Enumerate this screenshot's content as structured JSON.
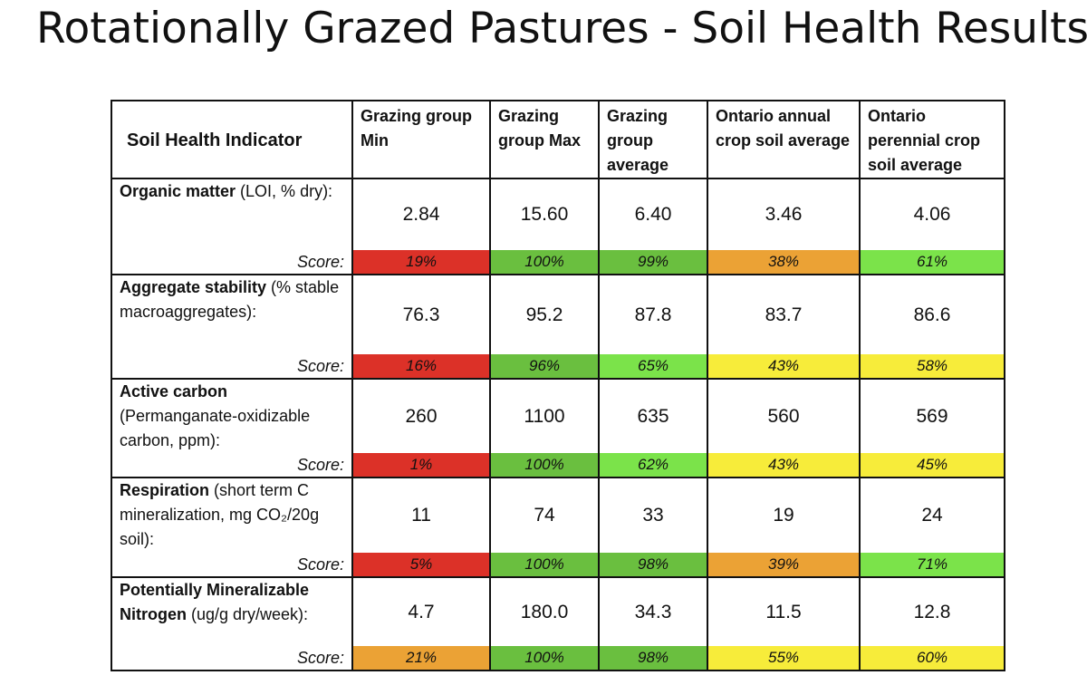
{
  "title": "Rotationally Grazed Pastures - Soil Health Results",
  "table": {
    "headers": [
      "Soil Health Indicator",
      "Grazing group Min",
      "Grazing group Max",
      "Grazing group average",
      "Ontario annual crop soil average",
      "Ontario perennial crop soil average"
    ],
    "score_label": "Score:",
    "rows": [
      {
        "indicator_bold": "Organic matter",
        "indicator_rest": " (LOI, % dry):",
        "values": [
          "2.84",
          "15.60",
          "6.40",
          "3.46",
          "4.06"
        ],
        "scores": [
          {
            "text": "19%",
            "color": "#dc3128"
          },
          {
            "text": "100%",
            "color": "#6abf3f"
          },
          {
            "text": "99%",
            "color": "#6abf3f"
          },
          {
            "text": "38%",
            "color": "#eba235"
          },
          {
            "text": "61%",
            "color": "#7be34a"
          }
        ]
      },
      {
        "indicator_bold": "Aggregate stability",
        "indicator_rest": " (% stable macroaggregates):",
        "values": [
          "76.3",
          "95.2",
          "87.8",
          "83.7",
          "86.6"
        ],
        "scores": [
          {
            "text": "16%",
            "color": "#dc3128"
          },
          {
            "text": "96%",
            "color": "#6abf3f"
          },
          {
            "text": "65%",
            "color": "#7be34a"
          },
          {
            "text": "43%",
            "color": "#f7ec3a"
          },
          {
            "text": "58%",
            "color": "#f7ec3a"
          }
        ]
      },
      {
        "indicator_bold": "Active carbon",
        "indicator_rest": " (Permanganate-oxidizable carbon, ppm):",
        "values": [
          "260",
          "1100",
          "635",
          "560",
          "569"
        ],
        "scores": [
          {
            "text": "1%",
            "color": "#dc3128"
          },
          {
            "text": "100%",
            "color": "#6abf3f"
          },
          {
            "text": "62%",
            "color": "#7be34a"
          },
          {
            "text": "43%",
            "color": "#f7ec3a"
          },
          {
            "text": "45%",
            "color": "#f7ec3a"
          }
        ]
      },
      {
        "indicator_bold": "Respiration",
        "indicator_rest": " (short term C mineralization, mg CO₂/20g soil):",
        "values": [
          "11",
          "74",
          "33",
          "19",
          "24"
        ],
        "scores": [
          {
            "text": "5%",
            "color": "#dc3128"
          },
          {
            "text": "100%",
            "color": "#6abf3f"
          },
          {
            "text": "98%",
            "color": "#6abf3f"
          },
          {
            "text": "39%",
            "color": "#eba235"
          },
          {
            "text": "71%",
            "color": "#7be34a"
          }
        ]
      },
      {
        "indicator_bold": "Potentially Mineralizable Nitrogen",
        "indicator_rest": " (ug/g dry/week):",
        "values": [
          "4.7",
          "180.0",
          "34.3",
          "11.5",
          "12.8"
        ],
        "scores": [
          {
            "text": "21%",
            "color": "#eba235"
          },
          {
            "text": "100%",
            "color": "#6abf3f"
          },
          {
            "text": "98%",
            "color": "#6abf3f"
          },
          {
            "text": "55%",
            "color": "#f7ec3a"
          },
          {
            "text": "60%",
            "color": "#f7ec3a"
          }
        ]
      }
    ]
  }
}
